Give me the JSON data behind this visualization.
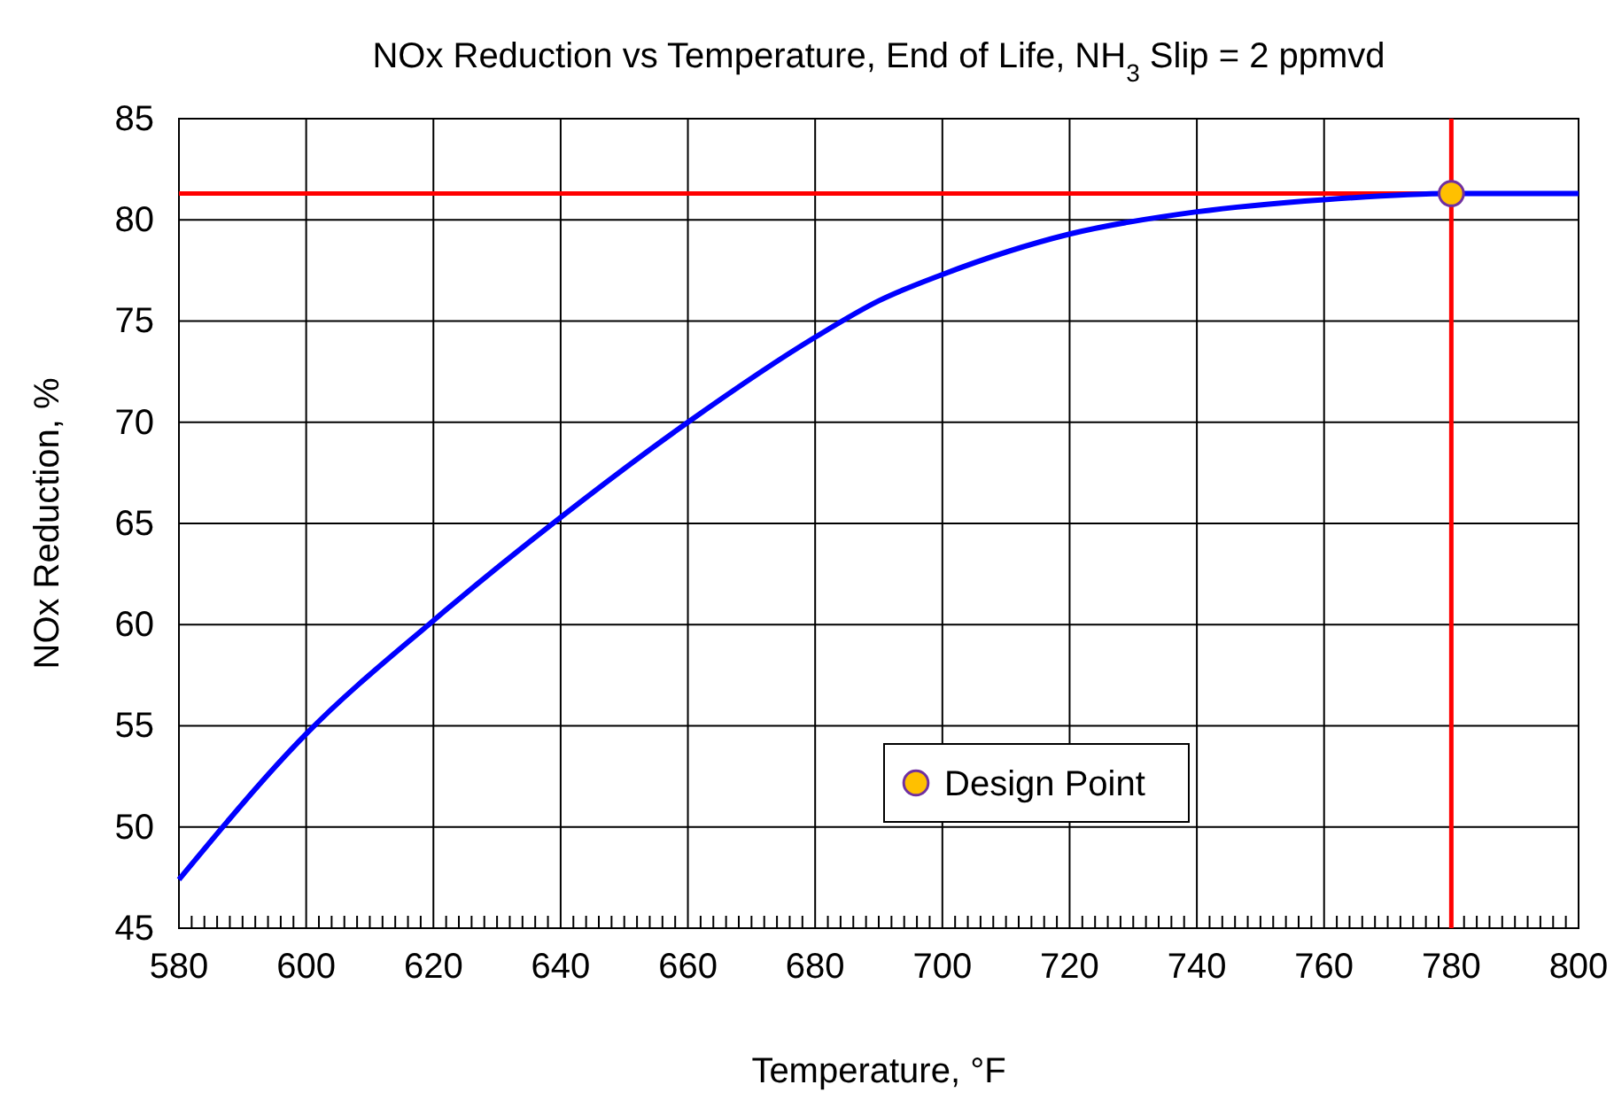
{
  "chart_data": {
    "type": "line",
    "title": "NOx Reduction vs Temperature, End of Life, NH$_{3}$ Slip = 2 ppmvd",
    "xlabel": "Temperature, °F",
    "ylabel": "NOx Reduction, %",
    "xlim": [
      580,
      800
    ],
    "xticks": [
      580,
      600,
      620,
      640,
      660,
      680,
      700,
      720,
      740,
      760,
      780,
      800
    ],
    "ylim": [
      45,
      85
    ],
    "yticks": [
      45,
      50,
      55,
      60,
      65,
      70,
      75,
      80,
      85
    ],
    "grid": true,
    "legend": "bottom right",
    "series": [
      {
        "color": "#0000ff",
        "x": [
          580,
          600,
          620,
          640,
          660,
          680,
          690,
          700,
          720,
          740,
          760,
          780,
          800
        ],
        "values": [
          47.4,
          54.6,
          60.2,
          65.3,
          70.0,
          74.2,
          76.0,
          77.3,
          79.3,
          80.4,
          81.0,
          81.3,
          81.3
        ]
      },
      {
        "type": "scatter",
        "name": "Design Point",
        "color": "#ffc000",
        "marker": "circle",
        "x": [
          780
        ],
        "values": [
          81.3
        ]
      }
    ],
    "ref_lines": [
      {
        "axis": "y",
        "value": 81.3,
        "color": "#ff0000"
      },
      {
        "axis": "x",
        "value": 780,
        "color": "#ff0000"
      }
    ]
  }
}
